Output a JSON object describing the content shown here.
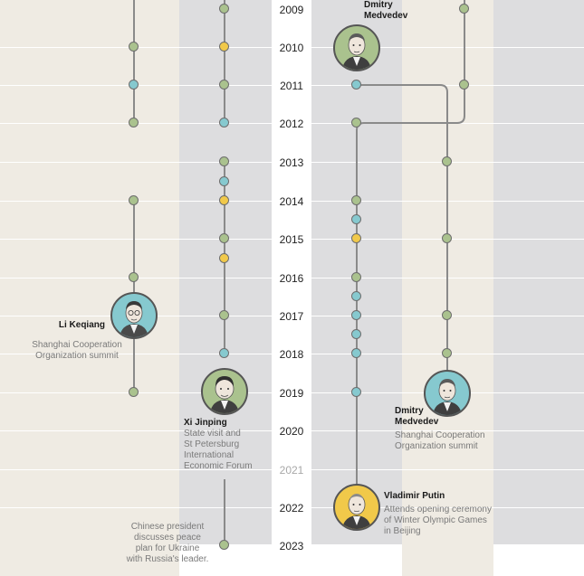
{
  "colors": {
    "green": "#aac28e",
    "blue": "#86c9cf",
    "yellow": "#f1c94a",
    "panel_light": "#efebe3",
    "panel_dark": "#dddddf",
    "line": "#8a8a8a"
  },
  "years": [
    "2009",
    "2010",
    "2011",
    "2012",
    "2013",
    "2014",
    "2015",
    "2016",
    "2017",
    "2018",
    "2019",
    "2020",
    "2021",
    "2022",
    "2023"
  ],
  "years_dimmed": [
    "2021"
  ],
  "people": {
    "li_keqiang": {
      "name": "Li Keqiang",
      "event_lines": [
        "Shanghai Cooperation",
        "Organization summit"
      ]
    },
    "xi_jinping": {
      "name": "Xi Jinping",
      "event_lines": [
        "State visit and",
        "St Petersburg",
        "International",
        "Economic Forum"
      ]
    },
    "medvedev_2010": {
      "name_lines": [
        "Dmitry",
        "Medvedev"
      ]
    },
    "medvedev_2019": {
      "name_lines": [
        "Dmitry",
        "Medvedev"
      ],
      "event_lines": [
        "Shanghai Cooperation",
        "Organization summit"
      ]
    },
    "putin": {
      "name": "Vladimir Putin",
      "event_lines": [
        "Attends opening ceremony",
        "of Winter Olympic Games",
        "in Beijing"
      ]
    }
  },
  "note_2023": [
    "Chinese president",
    "discusses peace",
    "plan for Ukraine",
    "with Russia's leader."
  ]
}
